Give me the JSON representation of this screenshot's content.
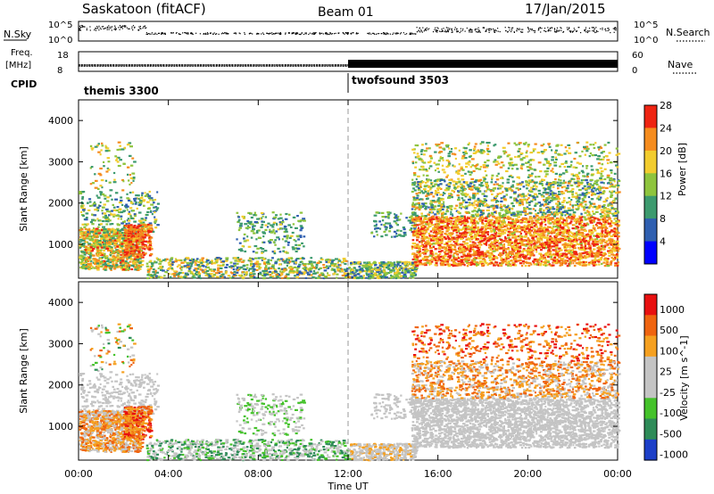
{
  "header": {
    "station": "Saskatoon (fitACF)",
    "beam": "Beam 01",
    "date": "17/Jan/2015"
  },
  "noise_panel": {
    "left_label": "N.Sky",
    "right_label": "N.Search",
    "left_ticks": [
      "10^5",
      "10^0"
    ],
    "right_ticks": [
      "10^5",
      "10^0"
    ]
  },
  "freq_panel": {
    "left_label_1": "Freq.",
    "left_label_2": "[MHz]",
    "left_ticks": [
      "18",
      "8"
    ],
    "right_label": "Nave",
    "right_ticks": [
      "60",
      "0"
    ]
  },
  "cpid": {
    "label": "CPID",
    "segments": [
      {
        "name": "themis 3300",
        "start_hour": 0
      },
      {
        "name": "twofsound 3503",
        "start_hour": 12
      }
    ]
  },
  "chart_data": [
    {
      "type": "heatmap",
      "title": "",
      "ylabel": "Slant Range [km]",
      "xlabel": "",
      "x_range_hours": [
        0,
        24
      ],
      "ylim": [
        180,
        4500
      ],
      "yticks": [
        "1000",
        "2000",
        "3000",
        "4000"
      ],
      "colorbar": {
        "label": "Power [dB]",
        "ticks": [
          "4",
          "8",
          "12",
          "16",
          "20",
          "24",
          "28"
        ],
        "colors": [
          "#0000ff",
          "#2f5fb0",
          "#3c9a6e",
          "#8ec43d",
          "#f2cc2e",
          "#f58c1e",
          "#ee2412"
        ]
      }
    },
    {
      "type": "heatmap",
      "title": "",
      "ylabel": "Slant Range [km]",
      "xlabel": "Time UT",
      "x_range_hours": [
        0,
        24
      ],
      "ylim": [
        180,
        4500
      ],
      "yticks": [
        "1000",
        "2000",
        "3000",
        "4000"
      ],
      "xticks": [
        "00:00",
        "04:00",
        "08:00",
        "12:00",
        "16:00",
        "20:00",
        "00:00"
      ],
      "colorbar": {
        "label": "Velocity [m s^-1]",
        "ticks": [
          "1000",
          "500",
          "100",
          "25",
          "-25",
          "-100",
          "-500",
          "-1000"
        ],
        "colors": [
          "#1c3fc8",
          "#2e8b58",
          "#44c22a",
          "#c4c4c4",
          "#c4c4c4",
          "#f5a020",
          "#ef6410",
          "#e81010"
        ]
      }
    }
  ]
}
